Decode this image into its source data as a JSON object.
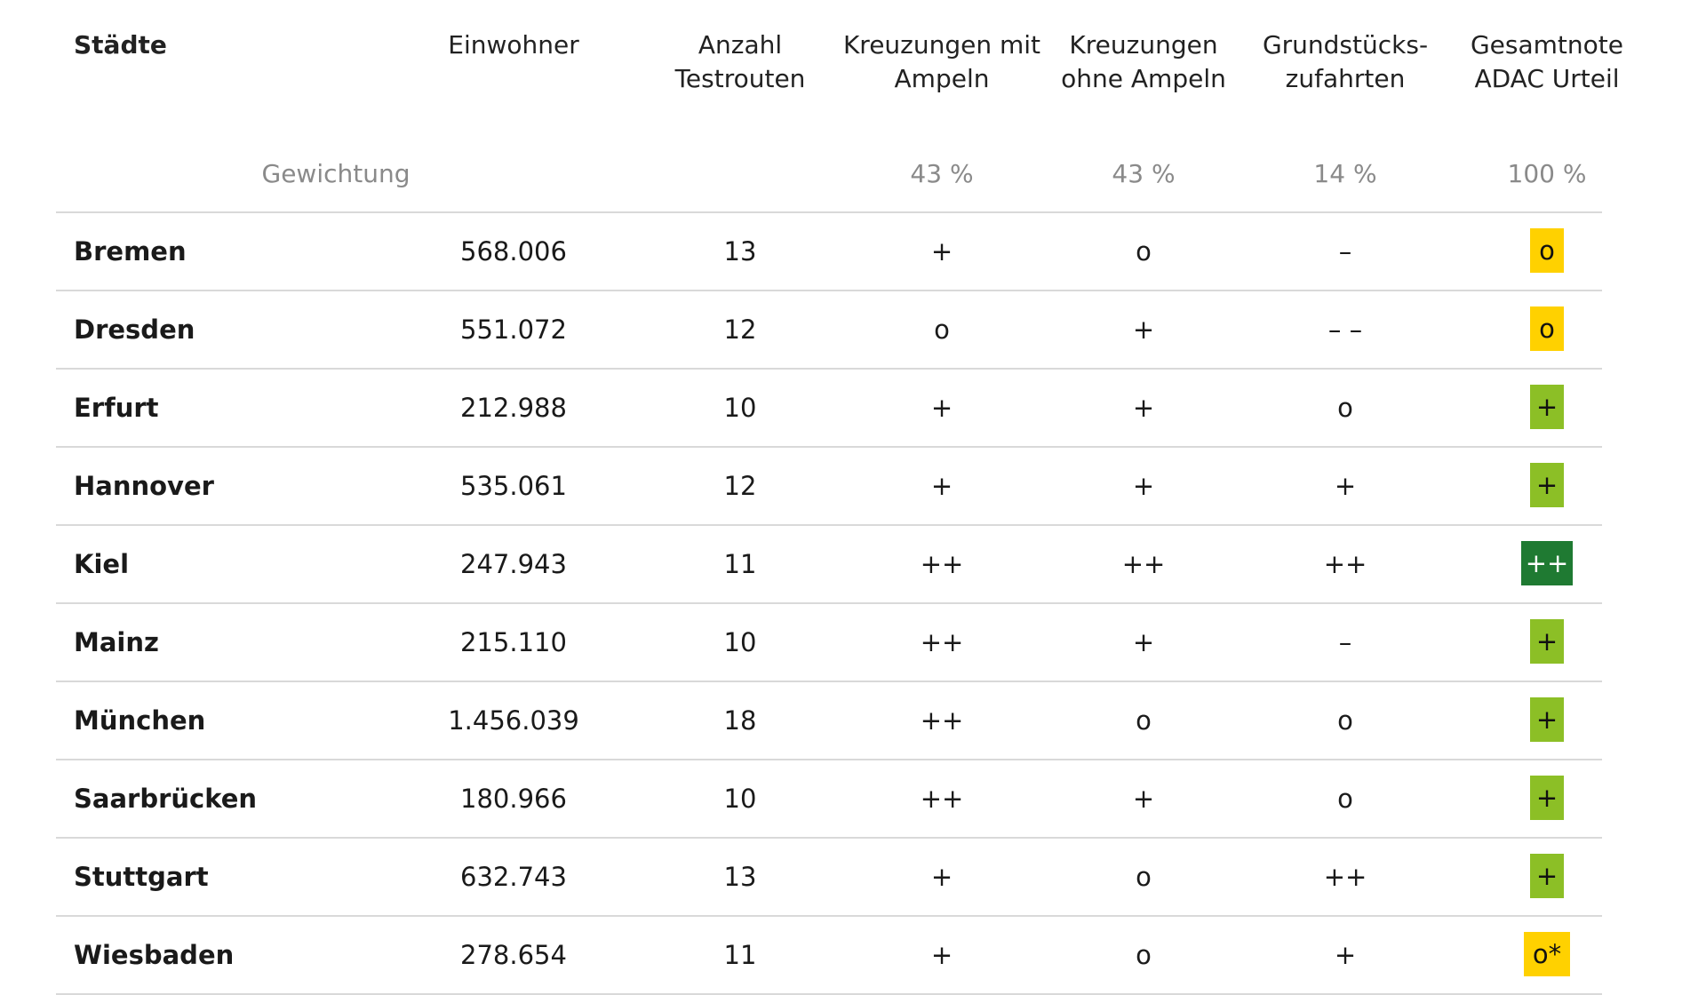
{
  "header": {
    "city": "Städte",
    "population": "Einwohner",
    "routes_l1": "Anzahl",
    "routes_l2": "Testrouten",
    "lights_l1": "Kreuzungen mit",
    "lights_l2": "Ampeln",
    "nolights_l1": "Kreuzungen",
    "nolights_l2": "ohne Ampeln",
    "access_l1": "Grundstücks-",
    "access_l2": "zufahrten",
    "total_l1": "Gesamtnote",
    "total_l2": "ADAC Urteil"
  },
  "weighting": {
    "label": "Gewichtung",
    "lights": "43 %",
    "nolights": "43 %",
    "access": "14 %",
    "total": "100 %"
  },
  "colors": {
    "yellow": "#ffd100",
    "light_green": "#8cbf26",
    "dark_green": "#1f7a32"
  },
  "rows": [
    {
      "city": "Bremen",
      "population": "568.006",
      "routes": "13",
      "lights": "+",
      "nolights": "o",
      "access": "–",
      "total": "o",
      "total_color": "yellow"
    },
    {
      "city": "Dresden",
      "population": "551.072",
      "routes": "12",
      "lights": "o",
      "nolights": "+",
      "access": "– –",
      "total": "o",
      "total_color": "yellow"
    },
    {
      "city": "Erfurt",
      "population": "212.988",
      "routes": "10",
      "lights": "+",
      "nolights": "+",
      "access": "o",
      "total": "+",
      "total_color": "light_green"
    },
    {
      "city": "Hannover",
      "population": "535.061",
      "routes": "12",
      "lights": "+",
      "nolights": "+",
      "access": "+",
      "total": "+",
      "total_color": "light_green"
    },
    {
      "city": "Kiel",
      "population": "247.943",
      "routes": "11",
      "lights": "++",
      "nolights": "++",
      "access": "++",
      "total": "++",
      "total_color": "dark_green"
    },
    {
      "city": "Mainz",
      "population": "215.110",
      "routes": "10",
      "lights": "++",
      "nolights": "+",
      "access": "–",
      "total": "+",
      "total_color": "light_green"
    },
    {
      "city": "München",
      "population": "1.456.039",
      "routes": "18",
      "lights": "++",
      "nolights": "o",
      "access": "o",
      "total": "+",
      "total_color": "light_green"
    },
    {
      "city": "Saarbrücken",
      "population": "180.966",
      "routes": "10",
      "lights": "++",
      "nolights": "+",
      "access": "o",
      "total": "+",
      "total_color": "light_green"
    },
    {
      "city": "Stuttgart",
      "population": "632.743",
      "routes": "13",
      "lights": "+",
      "nolights": "o",
      "access": "++",
      "total": "+",
      "total_color": "light_green"
    },
    {
      "city": "Wiesbaden",
      "population": "278.654",
      "routes": "11",
      "lights": "+",
      "nolights": "o",
      "access": "+",
      "total": "o*",
      "total_color": "yellow"
    }
  ]
}
